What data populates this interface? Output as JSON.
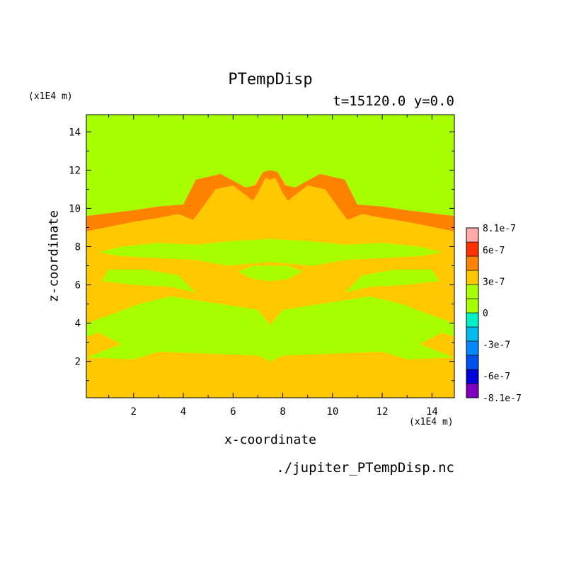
{
  "chart_data": {
    "type": "heatmap",
    "title": "PTempDisp",
    "subtitle": "t=15120.0 y=0.0",
    "xlabel": "x-coordinate",
    "ylabel": "z-coordinate",
    "x_unit": "(x1E4 m)",
    "y_unit": "(x1E4 m)",
    "xlim": [
      0.1,
      14.9
    ],
    "ylim": [
      0.1,
      14.9
    ],
    "x_ticks": [
      2,
      4,
      6,
      8,
      10,
      12,
      14
    ],
    "y_ticks": [
      2,
      4,
      6,
      8,
      10,
      12,
      14
    ],
    "grid": false,
    "source": "./jupiter_PTempDisp.nc",
    "colorbar": {
      "range": [
        -8.1e-07,
        8.1e-07
      ],
      "levels": [
        {
          "lo": -8.1e-07,
          "hi": -6.75e-07,
          "color": "#7f00bf"
        },
        {
          "lo": -6.75e-07,
          "hi": -5.4e-07,
          "color": "#0000dd"
        },
        {
          "lo": -5.4e-07,
          "hi": -4.05e-07,
          "color": "#0050f0"
        },
        {
          "lo": -4.05e-07,
          "hi": -2.7e-07,
          "color": "#0088ff"
        },
        {
          "lo": -2.7e-07,
          "hi": -1.35e-07,
          "color": "#00bbee"
        },
        {
          "lo": -1.35e-07,
          "hi": 0,
          "color": "#00f0c8"
        },
        {
          "lo": 0,
          "hi": 1.35e-07,
          "color": "#a8ff00"
        },
        {
          "lo": 1.35e-07,
          "hi": 2.7e-07,
          "color": "#a8ff00"
        },
        {
          "lo": 2.7e-07,
          "hi": 4.05e-07,
          "color": "#ffc800"
        },
        {
          "lo": 4.05e-07,
          "hi": 5.4e-07,
          "color": "#ff8200"
        },
        {
          "lo": 5.4e-07,
          "hi": 6.75e-07,
          "color": "#ff3200"
        },
        {
          "lo": 6.75e-07,
          "hi": 8.1e-07,
          "color": "#ffaaaa"
        }
      ],
      "labels": [
        {
          "text": "8.1e-7",
          "value": 8.1e-07
        },
        {
          "text": "6e-7",
          "value": 6e-07
        },
        {
          "text": "3e-7",
          "value": 3e-07
        },
        {
          "text": "0",
          "value": 0
        },
        {
          "text": "-3e-7",
          "value": -3e-07
        },
        {
          "text": "-6e-7",
          "value": -6e-07
        },
        {
          "text": "-8.1e-7",
          "value": -8.1e-07
        }
      ]
    },
    "regions": [
      {
        "level": 8,
        "points": [
          [
            0.1,
            0.1
          ],
          [
            14.9,
            0.1
          ],
          [
            14.9,
            2.2
          ],
          [
            13,
            2.1
          ],
          [
            12,
            2.5
          ],
          [
            10,
            2.4
          ],
          [
            8,
            2.3
          ],
          [
            7.5,
            2.0
          ],
          [
            7,
            2.3
          ],
          [
            5,
            2.4
          ],
          [
            3,
            2.5
          ],
          [
            2,
            2.1
          ],
          [
            0.1,
            2.2
          ]
        ]
      },
      {
        "level": 8,
        "points": [
          [
            0.1,
            2.2
          ],
          [
            1.5,
            2.9
          ],
          [
            0.6,
            3.5
          ],
          [
            0.1,
            3.3
          ]
        ]
      },
      {
        "level": 8,
        "points": [
          [
            14.9,
            2.2
          ],
          [
            13.5,
            2.9
          ],
          [
            14.4,
            3.5
          ],
          [
            14.9,
            3.3
          ]
        ]
      },
      {
        "level": 8,
        "points": [
          [
            0.1,
            4.0
          ],
          [
            1.2,
            4.5
          ],
          [
            2.2,
            5.0
          ],
          [
            3.5,
            5.4
          ],
          [
            5.0,
            5.1
          ],
          [
            6.0,
            4.9
          ],
          [
            7.0,
            4.7
          ],
          [
            7.5,
            3.9
          ],
          [
            8.0,
            4.7
          ],
          [
            9.0,
            4.9
          ],
          [
            10.0,
            5.1
          ],
          [
            11.5,
            5.4
          ],
          [
            12.8,
            5.0
          ],
          [
            13.8,
            4.5
          ],
          [
            14.9,
            4.0
          ],
          [
            14.9,
            9.4
          ],
          [
            13.0,
            9.5
          ],
          [
            11.5,
            9.8
          ],
          [
            11.0,
            10.0
          ],
          [
            10.4,
            11.4
          ],
          [
            9.5,
            11.6
          ],
          [
            8.6,
            11.0
          ],
          [
            8.2,
            11.2
          ],
          [
            7.8,
            11.8
          ],
          [
            7.5,
            12.0
          ],
          [
            7.2,
            11.8
          ],
          [
            6.8,
            11.2
          ],
          [
            6.4,
            11.0
          ],
          [
            5.5,
            11.6
          ],
          [
            4.6,
            11.4
          ],
          [
            4.0,
            10.0
          ],
          [
            3.5,
            9.8
          ],
          [
            2.0,
            9.5
          ],
          [
            0.1,
            9.4
          ]
        ]
      },
      {
        "level": 7,
        "points": [
          [
            0.6,
            7.7
          ],
          [
            1.5,
            7.5
          ],
          [
            3.0,
            7.4
          ],
          [
            4.5,
            7.3
          ],
          [
            5.8,
            7.0
          ],
          [
            7.5,
            7.2
          ],
          [
            9.2,
            7.0
          ],
          [
            10.5,
            7.3
          ],
          [
            12.0,
            7.4
          ],
          [
            13.5,
            7.5
          ],
          [
            14.4,
            7.7
          ],
          [
            13.5,
            8.0
          ],
          [
            12.0,
            8.2
          ],
          [
            10.5,
            8.1
          ],
          [
            9.0,
            8.3
          ],
          [
            7.5,
            8.4
          ],
          [
            6.0,
            8.3
          ],
          [
            4.5,
            8.1
          ],
          [
            3.0,
            8.2
          ],
          [
            1.5,
            8.0
          ]
        ]
      },
      {
        "level": 7,
        "points": [
          [
            0.7,
            6.2
          ],
          [
            2.0,
            6.0
          ],
          [
            3.5,
            5.9
          ],
          [
            4.5,
            5.6
          ],
          [
            3.8,
            6.5
          ],
          [
            2.5,
            6.8
          ],
          [
            1.0,
            6.8
          ]
        ]
      },
      {
        "level": 7,
        "points": [
          [
            14.3,
            6.2
          ],
          [
            13.0,
            6.0
          ],
          [
            11.5,
            5.9
          ],
          [
            10.5,
            5.6
          ],
          [
            11.2,
            6.5
          ],
          [
            12.5,
            6.8
          ],
          [
            14.0,
            6.8
          ]
        ]
      },
      {
        "level": 7,
        "points": [
          [
            6.2,
            6.7
          ],
          [
            6.8,
            6.3
          ],
          [
            7.5,
            6.2
          ],
          [
            8.2,
            6.3
          ],
          [
            8.8,
            6.7
          ],
          [
            8.2,
            7.0
          ],
          [
            6.8,
            7.0
          ]
        ]
      },
      {
        "level": 9,
        "points": [
          [
            0.1,
            8.8
          ],
          [
            2.0,
            9.3
          ],
          [
            3.0,
            9.5
          ],
          [
            3.8,
            9.7
          ],
          [
            4.4,
            9.4
          ],
          [
            4.8,
            10.1
          ],
          [
            5.3,
            11.0
          ],
          [
            6.0,
            11.2
          ],
          [
            6.8,
            10.4
          ],
          [
            7.0,
            10.8
          ],
          [
            7.3,
            11.6
          ],
          [
            7.5,
            11.5
          ],
          [
            7.7,
            11.6
          ],
          [
            8.0,
            10.8
          ],
          [
            8.2,
            10.4
          ],
          [
            9.0,
            11.2
          ],
          [
            9.7,
            11.0
          ],
          [
            10.2,
            10.1
          ],
          [
            10.6,
            9.4
          ],
          [
            11.2,
            9.7
          ],
          [
            12.0,
            9.5
          ],
          [
            13.0,
            9.3
          ],
          [
            14.9,
            8.8
          ],
          [
            14.9,
            9.6
          ],
          [
            13.0,
            9.9
          ],
          [
            12.0,
            10.1
          ],
          [
            11.0,
            10.2
          ],
          [
            10.5,
            11.5
          ],
          [
            9.5,
            11.8
          ],
          [
            8.5,
            11.1
          ],
          [
            8.1,
            11.2
          ],
          [
            7.8,
            11.9
          ],
          [
            7.5,
            12.0
          ],
          [
            7.2,
            11.9
          ],
          [
            6.9,
            11.2
          ],
          [
            6.5,
            11.1
          ],
          [
            5.5,
            11.8
          ],
          [
            4.5,
            11.5
          ],
          [
            4.0,
            10.2
          ],
          [
            3.0,
            10.1
          ],
          [
            2.0,
            9.9
          ],
          [
            0.1,
            9.6
          ]
        ]
      }
    ]
  }
}
